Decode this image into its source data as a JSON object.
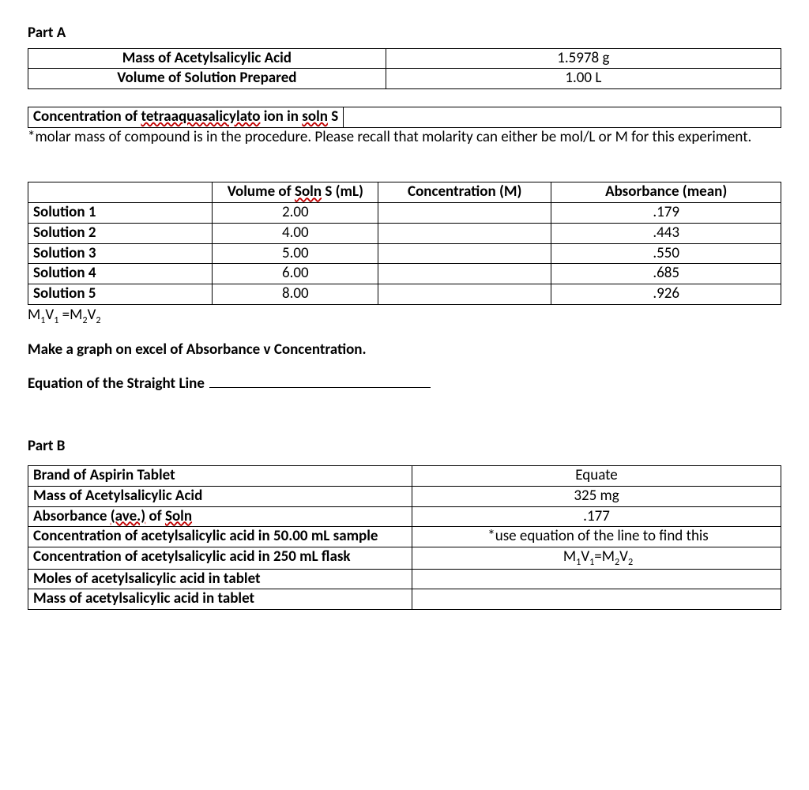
{
  "partA": {
    "heading": "Part A",
    "mass_label": "Mass of Acetylsalicylic Acid",
    "mass_value": "1.5978 g",
    "vol_label": "Volume of Solution Prepared",
    "vol_value": "1.00 L",
    "conc_label_pre": "Concentration of ",
    "conc_wavy1": "tetraaquasalicylato",
    "conc_mid": " ion in ",
    "conc_wavy2": "soln",
    "conc_post": " S",
    "note": "*molar mass of compound is in the procedure. Please recall that molarity can either be mol/L or M for this experiment.",
    "solTable": {
      "hdr_blank": "",
      "hdr_vol_pre": "Volume of ",
      "hdr_vol_wavy": "Soln",
      "hdr_vol_post": " S (mL)",
      "hdr_conc": "Concentration (M)",
      "hdr_abs": "Absorbance (mean)",
      "rows": [
        {
          "label": "Solution 1",
          "vol": "2.00",
          "conc": "",
          "abs": ".179"
        },
        {
          "label": "Solution 2",
          "vol": "4.00",
          "conc": "",
          "abs": ".443"
        },
        {
          "label": "Solution 3",
          "vol": "5.00",
          "conc": "",
          "abs": ".550"
        },
        {
          "label": "Solution 4",
          "vol": "6.00",
          "conc": "",
          "abs": ".685"
        },
        {
          "label": "Solution 5",
          "vol": "8.00",
          "conc": "",
          "abs": ".926"
        }
      ]
    },
    "eqn_html": "M<sub>1</sub>V<sub>1</sub> =M<sub>2</sub>V<sub>2</sub>",
    "makeGraph": "Make a graph on excel of Absorbance v Concentration.",
    "eqLine": "Equation of the Straight Line"
  },
  "partB": {
    "heading": "Part B",
    "rows": [
      {
        "label": "Brand of Aspirin Tablet",
        "value": "Equate",
        "center": true
      },
      {
        "label": "Mass of Acetylsalicylic Acid",
        "value": "325 mg",
        "center": true
      }
    ],
    "abs_pre": "Absorbance ",
    "abs_wavy1": "(ave.)",
    "abs_mid": " of ",
    "abs_wavy2": "Soln",
    "abs_value": ".177",
    "conc50_label": "Concentration of acetylsalicylic acid in 50.00 mL sample",
    "conc50_value": "*use equation of the line to find this",
    "conc250_label": "Concentration of acetylsalicylic acid in 250 mL flask",
    "conc250_value_html": "M<sub>1</sub>V<sub>1</sub>=M<sub>2</sub>V<sub>2</sub>",
    "moles_label": "Moles of acetylsalicylic acid in tablet",
    "moles_value": "",
    "massT_label": "Mass of acetylsalicylic acid in tablet",
    "massT_value": ""
  }
}
